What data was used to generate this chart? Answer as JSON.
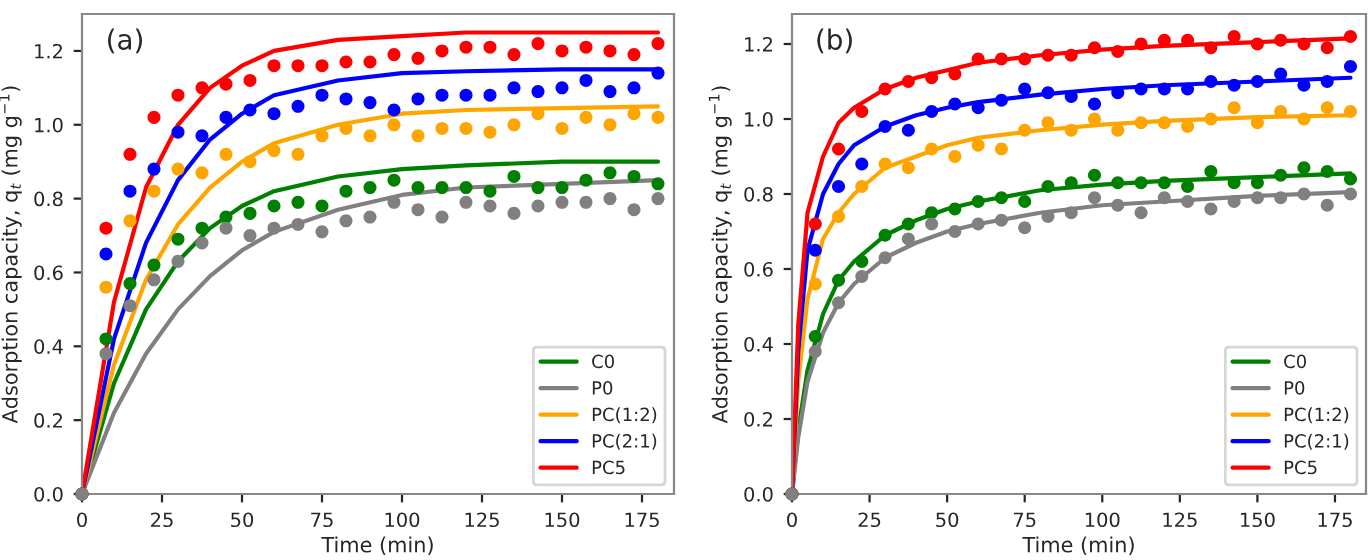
{
  "chart_data": [
    {
      "type": "line",
      "annotations": [
        "(a)"
      ],
      "xlabel": "Time (min)",
      "ylabel": "Adsorption capacity, q$_{t}$ (mg g$^{−1}$)",
      "xlim": [
        0,
        185
      ],
      "xticks": [
        0,
        25,
        50,
        75,
        100,
        125,
        150,
        175
      ],
      "ylim": [
        0,
        1.3
      ],
      "yticks": [
        {
          "value": 0,
          "label": "0.0"
        },
        {
          "value": 0.2,
          "label": "0.2"
        },
        {
          "value": 0.4,
          "label": "0.4"
        },
        {
          "value": 0.6,
          "label": "0.6"
        },
        {
          "value": 0.8,
          "label": "0.8"
        },
        {
          "value": 1.0,
          "label": "1.0"
        },
        {
          "value": 1.2,
          "label": "1.2"
        }
      ],
      "grid": false,
      "legend": "bottom right",
      "series": [
        {
          "type": "scatter",
          "marker": "circle",
          "color": "#ff0000",
          "x": [
            0,
            7.5,
            15,
            22.5,
            30,
            37.5,
            45,
            52.5,
            60,
            67.5,
            75,
            82.5,
            90,
            97.5,
            105,
            112.5,
            120,
            127.5,
            135,
            142.5,
            150,
            157.5,
            165,
            172.5,
            180
          ],
          "values": [
            0,
            0.72,
            0.92,
            1.02,
            1.08,
            1.1,
            1.11,
            1.12,
            1.16,
            1.16,
            1.16,
            1.17,
            1.17,
            1.19,
            1.18,
            1.2,
            1.21,
            1.21,
            1.19,
            1.22,
            1.2,
            1.21,
            1.2,
            1.19,
            1.22
          ]
        },
        {
          "type": "scatter",
          "marker": "circle",
          "color": "#0000ff",
          "x": [
            0,
            7.5,
            15,
            22.5,
            30,
            37.5,
            45,
            52.5,
            60,
            67.5,
            75,
            82.5,
            90,
            97.5,
            105,
            112.5,
            120,
            127.5,
            135,
            142.5,
            150,
            157.5,
            165,
            172.5,
            180
          ],
          "values": [
            0,
            0.65,
            0.82,
            0.88,
            0.98,
            0.97,
            1.02,
            1.04,
            1.03,
            1.05,
            1.08,
            1.07,
            1.06,
            1.04,
            1.07,
            1.08,
            1.08,
            1.08,
            1.1,
            1.09,
            1.1,
            1.12,
            1.09,
            1.1,
            1.14
          ]
        },
        {
          "type": "scatter",
          "marker": "circle",
          "color": "#ffa500",
          "x": [
            0,
            7.5,
            15,
            22.5,
            30,
            37.5,
            45,
            52.5,
            60,
            67.5,
            75,
            82.5,
            90,
            97.5,
            105,
            112.5,
            120,
            127.5,
            135,
            142.5,
            150,
            157.5,
            165,
            172.5,
            180
          ],
          "values": [
            0,
            0.56,
            0.74,
            0.82,
            0.88,
            0.87,
            0.92,
            0.9,
            0.93,
            0.92,
            0.97,
            0.99,
            0.97,
            1.0,
            0.97,
            0.99,
            0.99,
            0.98,
            1.0,
            1.03,
            0.99,
            1.02,
            1.0,
            1.03,
            1.02
          ]
        },
        {
          "type": "scatter",
          "marker": "circle",
          "color": "#008000",
          "x": [
            0,
            7.5,
            15,
            22.5,
            30,
            37.5,
            45,
            52.5,
            60,
            67.5,
            75,
            82.5,
            90,
            97.5,
            105,
            112.5,
            120,
            127.5,
            135,
            142.5,
            150,
            157.5,
            165,
            172.5,
            180
          ],
          "values": [
            0,
            0.42,
            0.57,
            0.62,
            0.69,
            0.72,
            0.75,
            0.76,
            0.78,
            0.79,
            0.78,
            0.82,
            0.83,
            0.85,
            0.83,
            0.83,
            0.83,
            0.82,
            0.86,
            0.83,
            0.83,
            0.85,
            0.87,
            0.86,
            0.84
          ]
        },
        {
          "type": "scatter",
          "marker": "circle",
          "color": "#808080",
          "x": [
            0,
            7.5,
            15,
            22.5,
            30,
            37.5,
            45,
            52.5,
            60,
            67.5,
            75,
            82.5,
            90,
            97.5,
            105,
            112.5,
            120,
            127.5,
            135,
            142.5,
            150,
            157.5,
            165,
            172.5,
            180
          ],
          "values": [
            0,
            0.38,
            0.51,
            0.58,
            0.63,
            0.68,
            0.72,
            0.7,
            0.72,
            0.73,
            0.71,
            0.74,
            0.75,
            0.79,
            0.77,
            0.75,
            0.79,
            0.78,
            0.76,
            0.78,
            0.79,
            0.79,
            0.8,
            0.77,
            0.8
          ]
        },
        {
          "type": "line",
          "name": "C0",
          "color": "#008000",
          "x": [
            0,
            10,
            20,
            30,
            40,
            50,
            60,
            80,
            100,
            120,
            150,
            180
          ],
          "values": [
            0,
            0.3,
            0.5,
            0.63,
            0.72,
            0.78,
            0.82,
            0.86,
            0.88,
            0.89,
            0.9,
            0.9
          ]
        },
        {
          "type": "line",
          "name": "P0",
          "color": "#808080",
          "x": [
            0,
            10,
            20,
            30,
            40,
            50,
            60,
            80,
            100,
            120,
            150,
            180
          ],
          "values": [
            0,
            0.22,
            0.38,
            0.5,
            0.59,
            0.66,
            0.71,
            0.77,
            0.81,
            0.83,
            0.84,
            0.85
          ]
        },
        {
          "type": "line",
          "name": "PC(1:2)",
          "color": "#ffa500",
          "x": [
            0,
            10,
            20,
            30,
            40,
            50,
            60,
            80,
            100,
            120,
            150,
            180
          ],
          "values": [
            0,
            0.35,
            0.58,
            0.73,
            0.83,
            0.9,
            0.95,
            1.0,
            1.03,
            1.04,
            1.045,
            1.05
          ]
        },
        {
          "type": "line",
          "name": "PC(2:1)",
          "color": "#0000ff",
          "x": [
            0,
            10,
            20,
            30,
            40,
            50,
            60,
            80,
            100,
            120,
            150,
            180
          ],
          "values": [
            0,
            0.42,
            0.68,
            0.85,
            0.96,
            1.03,
            1.08,
            1.12,
            1.14,
            1.145,
            1.15,
            1.15
          ]
        },
        {
          "type": "line",
          "name": "PC5",
          "color": "#ff0000",
          "x": [
            0,
            10,
            20,
            30,
            40,
            50,
            60,
            80,
            100,
            120,
            150,
            180
          ],
          "values": [
            0,
            0.52,
            0.83,
            1.0,
            1.1,
            1.16,
            1.2,
            1.23,
            1.24,
            1.25,
            1.25,
            1.25
          ]
        }
      ]
    },
    {
      "type": "line",
      "annotations": [
        "(b)"
      ],
      "xlabel": "Time (min)",
      "ylabel": "Adsorption capacity, q$_{t}$ (mg g$^{−1}$)",
      "xlim": [
        0,
        185
      ],
      "xticks": [
        0,
        25,
        50,
        75,
        100,
        125,
        150,
        175
      ],
      "ylim": [
        0,
        1.28
      ],
      "yticks": [
        {
          "value": 0,
          "label": "0.0"
        },
        {
          "value": 0.2,
          "label": "0.2"
        },
        {
          "value": 0.4,
          "label": "0.4"
        },
        {
          "value": 0.6,
          "label": "0.6"
        },
        {
          "value": 0.8,
          "label": "0.8"
        },
        {
          "value": 1.0,
          "label": "1.0"
        },
        {
          "value": 1.2,
          "label": "1.2"
        }
      ],
      "grid": false,
      "legend": "bottom right",
      "series": [
        {
          "type": "scatter",
          "marker": "circle",
          "color": "#ff0000",
          "x": [
            0,
            7.5,
            15,
            22.5,
            30,
            37.5,
            45,
            52.5,
            60,
            67.5,
            75,
            82.5,
            90,
            97.5,
            105,
            112.5,
            120,
            127.5,
            135,
            142.5,
            150,
            157.5,
            165,
            172.5,
            180
          ],
          "values": [
            0,
            0.72,
            0.92,
            1.02,
            1.08,
            1.1,
            1.11,
            1.12,
            1.16,
            1.16,
            1.16,
            1.17,
            1.17,
            1.19,
            1.18,
            1.2,
            1.21,
            1.21,
            1.19,
            1.22,
            1.2,
            1.21,
            1.2,
            1.19,
            1.22
          ]
        },
        {
          "type": "scatter",
          "marker": "circle",
          "color": "#0000ff",
          "x": [
            0,
            7.5,
            15,
            22.5,
            30,
            37.5,
            45,
            52.5,
            60,
            67.5,
            75,
            82.5,
            90,
            97.5,
            105,
            112.5,
            120,
            127.5,
            135,
            142.5,
            150,
            157.5,
            165,
            172.5,
            180
          ],
          "values": [
            0,
            0.65,
            0.82,
            0.88,
            0.98,
            0.97,
            1.02,
            1.04,
            1.03,
            1.05,
            1.08,
            1.07,
            1.06,
            1.04,
            1.07,
            1.08,
            1.08,
            1.08,
            1.1,
            1.09,
            1.1,
            1.12,
            1.09,
            1.1,
            1.14
          ]
        },
        {
          "type": "scatter",
          "marker": "circle",
          "color": "#ffa500",
          "x": [
            0,
            7.5,
            15,
            22.5,
            30,
            37.5,
            45,
            52.5,
            60,
            67.5,
            75,
            82.5,
            90,
            97.5,
            105,
            112.5,
            120,
            127.5,
            135,
            142.5,
            150,
            157.5,
            165,
            172.5,
            180
          ],
          "values": [
            0,
            0.56,
            0.74,
            0.82,
            0.88,
            0.87,
            0.92,
            0.9,
            0.93,
            0.92,
            0.97,
            0.99,
            0.97,
            1.0,
            0.97,
            0.99,
            0.99,
            0.98,
            1.0,
            1.03,
            0.99,
            1.02,
            1.0,
            1.03,
            1.02
          ]
        },
        {
          "type": "scatter",
          "marker": "circle",
          "color": "#008000",
          "x": [
            0,
            7.5,
            15,
            22.5,
            30,
            37.5,
            45,
            52.5,
            60,
            67.5,
            75,
            82.5,
            90,
            97.5,
            105,
            112.5,
            120,
            127.5,
            135,
            142.5,
            150,
            157.5,
            165,
            172.5,
            180
          ],
          "values": [
            0,
            0.42,
            0.57,
            0.62,
            0.69,
            0.72,
            0.75,
            0.76,
            0.78,
            0.79,
            0.78,
            0.82,
            0.83,
            0.85,
            0.83,
            0.83,
            0.83,
            0.82,
            0.86,
            0.83,
            0.83,
            0.85,
            0.87,
            0.86,
            0.84
          ]
        },
        {
          "type": "scatter",
          "marker": "circle",
          "color": "#808080",
          "x": [
            0,
            7.5,
            15,
            22.5,
            30,
            37.5,
            45,
            52.5,
            60,
            67.5,
            75,
            82.5,
            90,
            97.5,
            105,
            112.5,
            120,
            127.5,
            135,
            142.5,
            150,
            157.5,
            165,
            172.5,
            180
          ],
          "values": [
            0,
            0.38,
            0.51,
            0.58,
            0.63,
            0.68,
            0.72,
            0.7,
            0.72,
            0.73,
            0.71,
            0.74,
            0.75,
            0.79,
            0.77,
            0.75,
            0.79,
            0.78,
            0.76,
            0.78,
            0.79,
            0.79,
            0.8,
            0.77,
            0.8
          ]
        },
        {
          "type": "line",
          "name": "C0",
          "color": "#008000",
          "x": [
            0,
            2,
            5,
            10,
            15,
            20,
            30,
            40,
            50,
            60,
            80,
            100,
            120,
            150,
            180
          ],
          "values": [
            0,
            0.17,
            0.33,
            0.48,
            0.57,
            0.62,
            0.69,
            0.73,
            0.76,
            0.78,
            0.81,
            0.825,
            0.835,
            0.845,
            0.855
          ]
        },
        {
          "type": "line",
          "name": "P0",
          "color": "#808080",
          "x": [
            0,
            2,
            5,
            10,
            15,
            20,
            30,
            40,
            50,
            60,
            80,
            100,
            120,
            150,
            180
          ],
          "values": [
            0,
            0.15,
            0.3,
            0.43,
            0.51,
            0.56,
            0.63,
            0.67,
            0.7,
            0.72,
            0.75,
            0.77,
            0.78,
            0.795,
            0.805
          ]
        },
        {
          "type": "line",
          "name": "PC(1:2)",
          "color": "#ffa500",
          "x": [
            0,
            2,
            5,
            10,
            15,
            20,
            30,
            40,
            50,
            60,
            80,
            100,
            120,
            150,
            180
          ],
          "values": [
            0,
            0.3,
            0.52,
            0.68,
            0.75,
            0.8,
            0.87,
            0.9,
            0.93,
            0.95,
            0.97,
            0.985,
            0.995,
            1.005,
            1.01
          ]
        },
        {
          "type": "line",
          "name": "PC(2:1)",
          "color": "#0000ff",
          "x": [
            0,
            2,
            5,
            10,
            15,
            20,
            30,
            40,
            50,
            60,
            80,
            100,
            120,
            150,
            180
          ],
          "values": [
            0,
            0.38,
            0.65,
            0.8,
            0.88,
            0.93,
            0.98,
            1.01,
            1.03,
            1.045,
            1.065,
            1.08,
            1.09,
            1.1,
            1.11
          ]
        },
        {
          "type": "line",
          "name": "PC5",
          "color": "#ff0000",
          "x": [
            0,
            2,
            5,
            10,
            15,
            20,
            30,
            40,
            50,
            60,
            80,
            100,
            120,
            150,
            180
          ],
          "values": [
            0,
            0.45,
            0.75,
            0.9,
            0.99,
            1.03,
            1.08,
            1.11,
            1.13,
            1.15,
            1.17,
            1.185,
            1.195,
            1.205,
            1.215
          ]
        }
      ]
    }
  ]
}
